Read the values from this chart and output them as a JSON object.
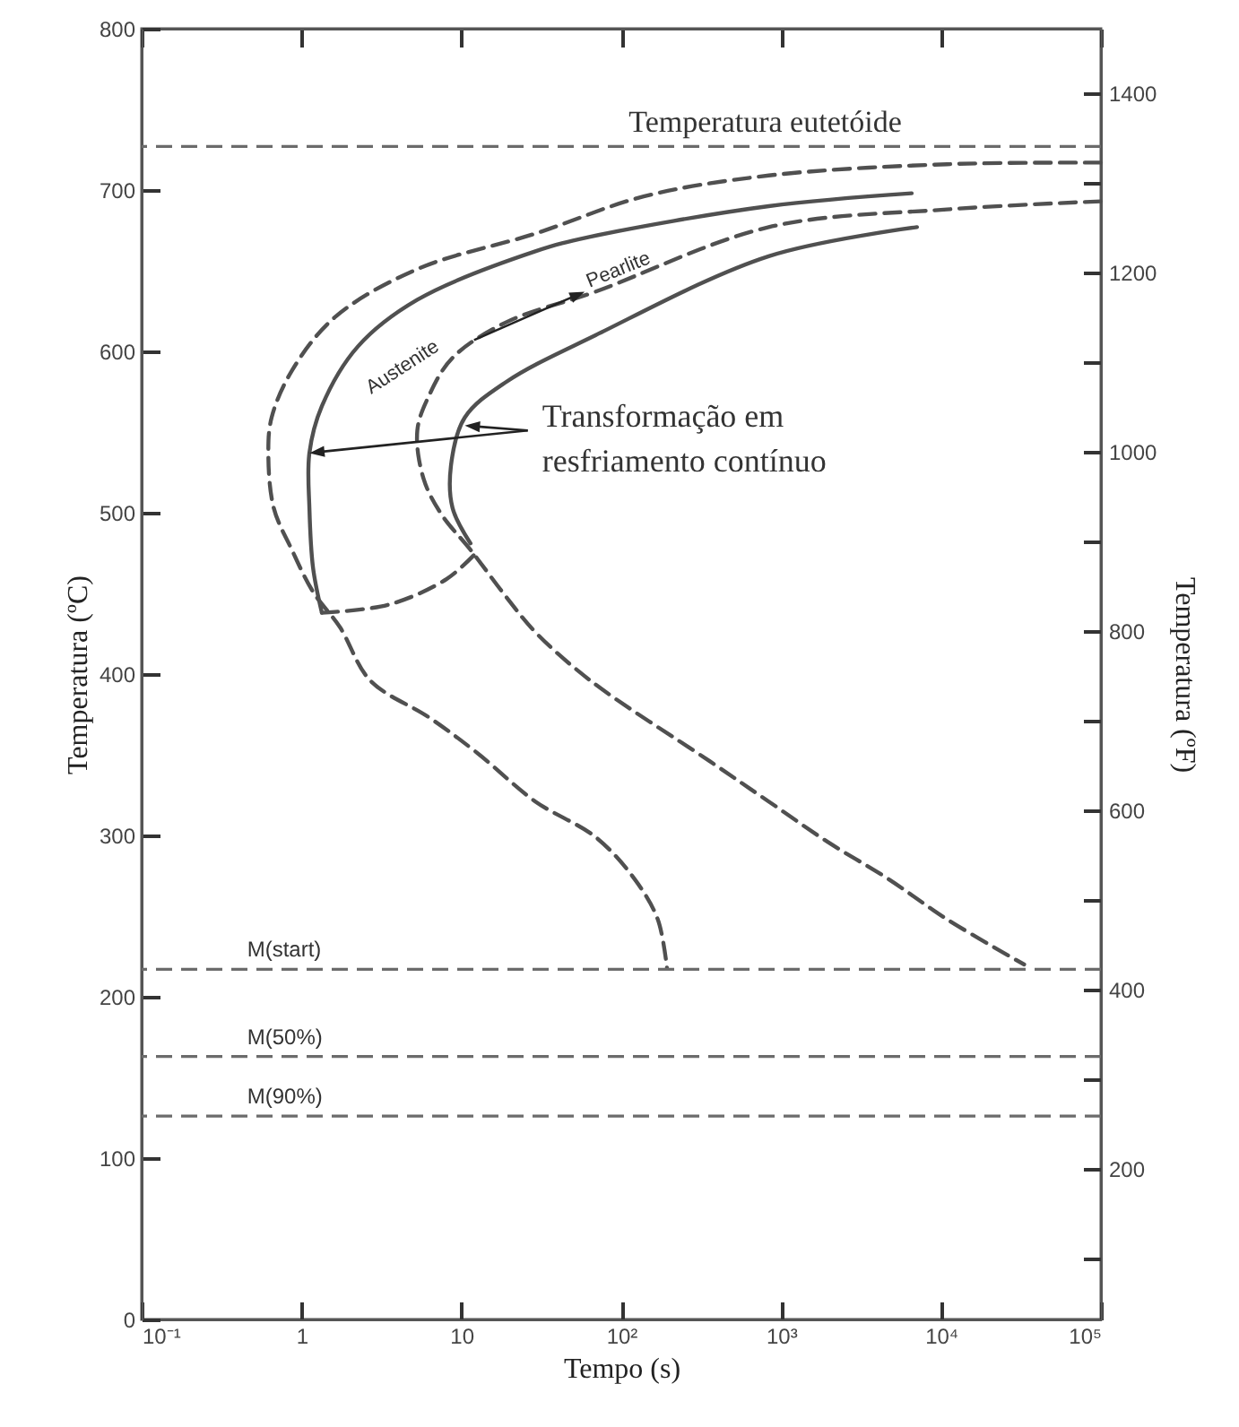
{
  "chart_data": {
    "type": "line",
    "xlabel": "Tempo (s)",
    "ylabel": "Temperatura (ºC)",
    "y2label": "Temperatura (ºF)",
    "log": "x",
    "grid": false,
    "marker": "none",
    "xlim": [
      0.1,
      100000
    ],
    "xticks": [
      {
        "value": 0.1,
        "label": "10⁻¹"
      },
      1,
      10,
      {
        "value": 100,
        "label": "10²"
      },
      {
        "value": 1000,
        "label": "10³"
      },
      {
        "value": 10000,
        "label": "10⁴"
      },
      {
        "value": 100000,
        "label": "10⁵"
      }
    ],
    "ylim": [
      0,
      800
    ],
    "yticks": [
      0,
      100,
      200,
      300,
      400,
      500,
      600,
      700,
      800
    ],
    "y2lim": [
      32,
      1472
    ],
    "y2ticks": [
      {
        "value": 100,
        "label": null
      },
      200,
      {
        "value": 300,
        "label": null
      },
      400,
      {
        "value": 500,
        "label": null
      },
      600,
      {
        "value": 700,
        "label": null
      },
      800,
      {
        "value": 900,
        "label": null
      },
      1000,
      {
        "value": 1100,
        "label": null
      },
      1200,
      {
        "value": 1300,
        "label": null
      },
      1400
    ],
    "series": [
      {
        "color": "#505050",
        "line_style": "dashed",
        "x": [
          100000,
          10900,
          836,
          138,
          29,
          5.3,
          1.61,
          0.87,
          0.65,
          0.62,
          0.67,
          0.87,
          1.18,
          1.74,
          2.69,
          6.3,
          12.6,
          29,
          69,
          121,
          169,
          193
        ],
        "values": [
          717,
          716,
          709,
          696,
          673,
          651,
          621,
          588,
          559,
          537,
          503,
          477,
          451,
          429,
          396,
          373,
          351,
          321,
          299,
          273,
          248,
          218
        ]
      },
      {
        "color": "#505050",
        "line_style": "solid",
        "x": [
          6550,
          836,
          64,
          29,
          5.3,
          2.25,
          1.34,
          1.12,
          1.12,
          1.18,
          1.34
        ],
        "values": [
          698,
          690,
          671,
          662,
          632,
          603,
          566,
          537,
          503,
          466,
          438
        ]
      },
      {
        "color": "#505050",
        "line_style": "dashed",
        "x": [
          100000,
          10900,
          836,
          69,
          19,
          8.8,
          6.3,
          5.3,
          5.8,
          7.5,
          11.4,
          19,
          29,
          64,
          357,
          836,
          1950,
          4680,
          10900,
          33100
        ],
        "values": [
          693,
          688,
          677,
          637,
          618,
          596,
          573,
          551,
          521,
          499,
          477,
          448,
          426,
          396,
          346,
          321,
          296,
          273,
          248,
          220
        ]
      },
      {
        "color": "#505050",
        "line_style": "solid",
        "x": [
          7070,
          836,
          69,
          19,
          10.5,
          8.6,
          8.8,
          11.4
        ],
        "values": [
          677,
          659,
          610,
          581,
          559,
          529,
          503,
          481
        ]
      },
      {
        "color": "#505050",
        "line_style": "dashed",
        "x": [
          1.34,
          3.5,
          8.1,
          12.6
        ],
        "values": [
          438,
          443,
          459,
          476
        ]
      }
    ],
    "ref_lines": [
      {
        "axis": "y",
        "value": 727,
        "label": "Temperatura eutetóide",
        "color": "#6b6b6b",
        "line_style": "dashed"
      },
      {
        "axis": "y",
        "value": 217,
        "label": "M(start)",
        "color": "#6b6b6b",
        "line_style": "dashed"
      },
      {
        "axis": "y",
        "value": 163,
        "label": "M(50%)",
        "color": "#6b6b6b",
        "line_style": "dashed"
      },
      {
        "axis": "y",
        "value": 126,
        "label": "M(90%)",
        "color": "#6b6b6b",
        "line_style": "dashed"
      }
    ],
    "annotations": [
      "Austenite",
      {
        "text": "Pearlite",
        "x": 59,
        "y": 637
      },
      "Transformação em resfriamento contínuo"
    ]
  }
}
